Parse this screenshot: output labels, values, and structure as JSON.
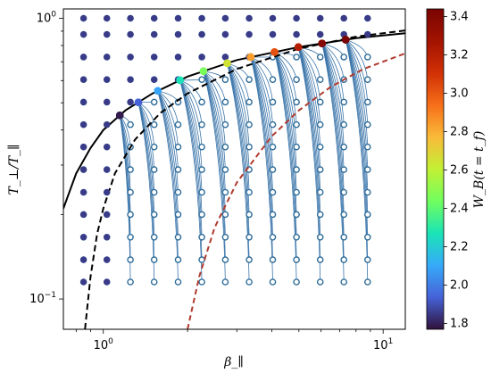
{
  "chart_data": {
    "type": "scatter",
    "title": "",
    "xlabel": "β_∥",
    "ylabel": "T_⊥/T_∥",
    "xscale": "log",
    "yscale": "log",
    "xlim": [
      0.72,
      12.0
    ],
    "ylim": [
      0.078,
      1.08
    ],
    "x_ticks": [
      {
        "value": 1,
        "base": "10",
        "exp": "0"
      },
      {
        "value": 10,
        "base": "10",
        "exp": "1"
      }
    ],
    "y_ticks": [
      {
        "value": 0.1,
        "base": "10",
        "exp": "−1"
      },
      {
        "value": 1,
        "base": "10",
        "exp": "0"
      }
    ],
    "grid": false,
    "colorbar": {
      "label": "W_B(t = t_f)",
      "range": [
        1.77,
        3.44
      ],
      "ticks": [
        "1.8",
        "2.0",
        "2.2",
        "2.4",
        "2.6",
        "2.8",
        "3.0",
        "3.2",
        "3.4"
      ],
      "colormap": "turbo"
    },
    "grid_beta": [
      0.85,
      1.03,
      1.25,
      1.52,
      1.85,
      2.25,
      2.73,
      3.32,
      4.03,
      4.9,
      5.96,
      7.24,
      8.8
    ],
    "grid_anisotropy": [
      0.115,
      0.138,
      0.166,
      0.2,
      0.24,
      0.289,
      0.348,
      0.418,
      0.503,
      0.605,
      0.728,
      0.876,
      1.0
    ],
    "series": [
      {
        "name": "initial states",
        "style": "open circle",
        "color": "#2e6c99"
      },
      {
        "name": "trajectories",
        "style": "thin line",
        "color": "#3b75aa"
      },
      {
        "name": "final states",
        "style": "filled circle colored by W_B"
      },
      {
        "name": "",
        "style": "solid black curve",
        "color": "#000000",
        "points": [
          [
            0.72,
            0.21
          ],
          [
            0.8,
            0.28
          ],
          [
            0.9,
            0.345
          ],
          [
            1.0,
            0.4
          ],
          [
            1.2,
            0.47
          ],
          [
            1.5,
            0.54
          ],
          [
            2.0,
            0.62
          ],
          [
            3.0,
            0.71
          ],
          [
            5.0,
            0.79
          ],
          [
            8.0,
            0.85
          ],
          [
            12.0,
            0.885
          ]
        ]
      },
      {
        "name": "",
        "style": "dashed black curve",
        "color": "#000000",
        "points": [
          [
            0.86,
            0.078
          ],
          [
            0.9,
            0.12
          ],
          [
            0.95,
            0.17
          ],
          [
            1.0,
            0.21
          ],
          [
            1.1,
            0.28
          ],
          [
            1.3,
            0.37
          ],
          [
            1.6,
            0.46
          ],
          [
            2.0,
            0.54
          ],
          [
            3.0,
            0.66
          ],
          [
            5.0,
            0.78
          ],
          [
            8.0,
            0.86
          ],
          [
            12.0,
            0.905
          ]
        ]
      },
      {
        "name": "",
        "style": "dashed red curve",
        "color": "#b03a2e",
        "points": [
          [
            2.0,
            0.078
          ],
          [
            2.2,
            0.12
          ],
          [
            2.5,
            0.18
          ],
          [
            3.0,
            0.26
          ],
          [
            4.0,
            0.38
          ],
          [
            5.0,
            0.47
          ],
          [
            6.5,
            0.57
          ],
          [
            8.5,
            0.66
          ],
          [
            12.0,
            0.75
          ]
        ]
      }
    ]
  }
}
